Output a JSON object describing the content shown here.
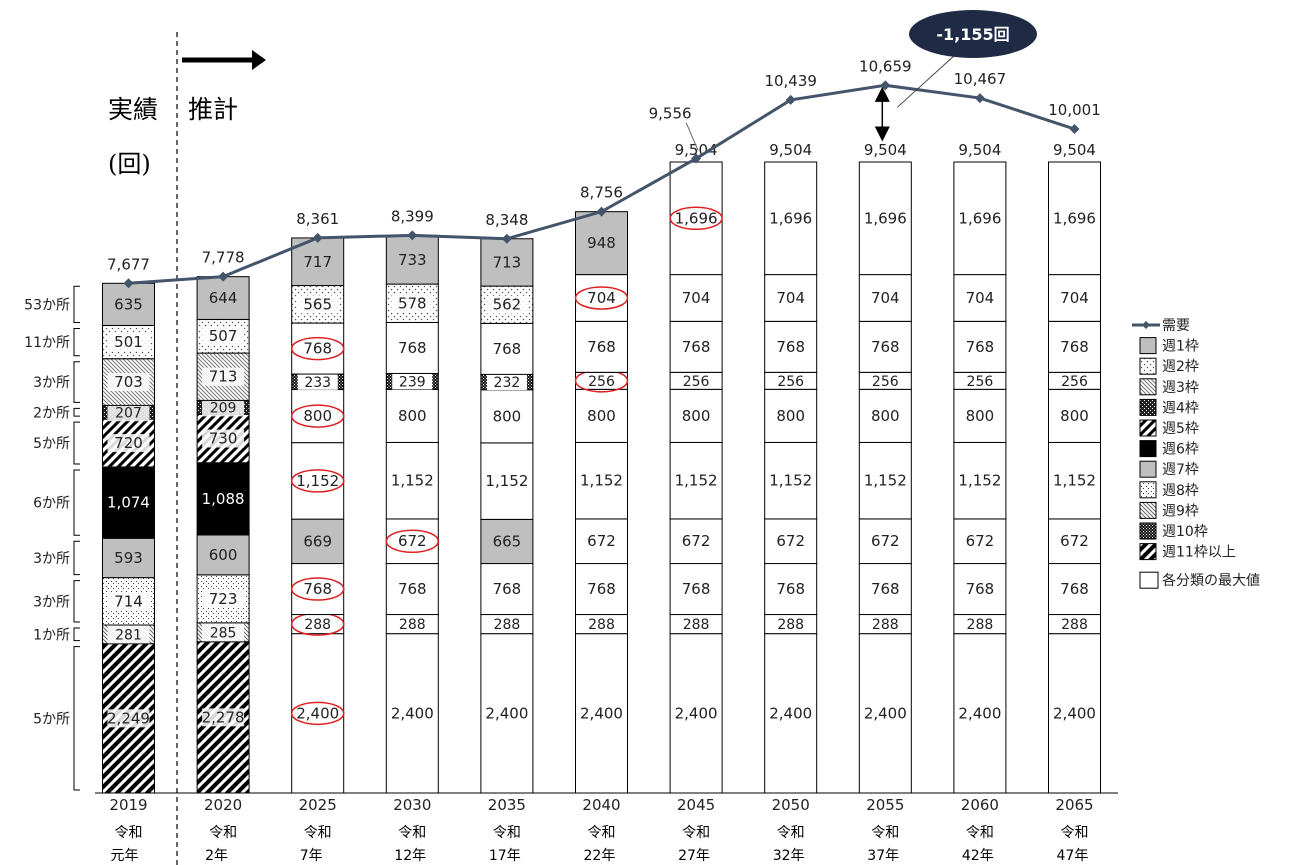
{
  "labels": {
    "actual": "実績",
    "forecast": "推計",
    "unit": "(回)",
    "callout": "-1,155回"
  },
  "legend": [
    {
      "key": "demand",
      "label": "需要"
    },
    {
      "key": "w1",
      "label": "週1枠"
    },
    {
      "key": "w2",
      "label": "週2枠"
    },
    {
      "key": "w3",
      "label": "週3枠"
    },
    {
      "key": "w4",
      "label": "週4枠"
    },
    {
      "key": "w5",
      "label": "週5枠"
    },
    {
      "key": "w6",
      "label": "週6枠"
    },
    {
      "key": "w7",
      "label": "週7枠"
    },
    {
      "key": "w8",
      "label": "週8枠"
    },
    {
      "key": "w9",
      "label": "週9枠"
    },
    {
      "key": "w10",
      "label": "週10枠"
    },
    {
      "key": "w11",
      "label": "週11枠以上"
    },
    {
      "key": "max",
      "label": "各分類の最大値"
    }
  ],
  "chart_data": {
    "type": "bar",
    "stacked": true,
    "categories": [
      {
        "year": "2019",
        "era": "令和",
        "era_year": "元年"
      },
      {
        "year": "2020",
        "era": "令和",
        "era_year": "2年"
      },
      {
        "year": "2025",
        "era": "令和",
        "era_year": "7年"
      },
      {
        "year": "2030",
        "era": "令和",
        "era_year": "12年"
      },
      {
        "year": "2035",
        "era": "令和",
        "era_year": "17年"
      },
      {
        "year": "2040",
        "era": "令和",
        "era_year": "22年"
      },
      {
        "year": "2045",
        "era": "令和",
        "era_year": "27年"
      },
      {
        "year": "2050",
        "era": "令和",
        "era_year": "32年"
      },
      {
        "year": "2055",
        "era": "令和",
        "era_year": "37年"
      },
      {
        "year": "2060",
        "era": "令和",
        "era_year": "42年"
      },
      {
        "year": "2065",
        "era": "令和",
        "era_year": "47年"
      }
    ],
    "groups": [
      {
        "label": "5か所"
      },
      {
        "label": "1か所"
      },
      {
        "label": "3か所"
      },
      {
        "label": "3か所"
      },
      {
        "label": "6か所"
      },
      {
        "label": "5か所"
      },
      {
        "label": "2か所"
      },
      {
        "label": "3か所"
      },
      {
        "label": "11か所"
      },
      {
        "label": "53か所"
      }
    ],
    "columns": [
      {
        "segments": [
          {
            "v": 2249,
            "p": "w11"
          },
          {
            "v": 281,
            "p": "w9"
          },
          {
            "v": 714,
            "p": "w8"
          },
          {
            "v": 593,
            "p": "w7"
          },
          {
            "v": 1074,
            "p": "w6"
          },
          {
            "v": 720,
            "p": "w5"
          },
          {
            "v": 207,
            "p": "w4"
          },
          {
            "v": 703,
            "p": "w3"
          },
          {
            "v": 501,
            "p": "w2"
          },
          {
            "v": 635,
            "p": "w1"
          }
        ]
      },
      {
        "segments": [
          {
            "v": 2278,
            "p": "w11"
          },
          {
            "v": 285,
            "p": "w9"
          },
          {
            "v": 723,
            "p": "w8"
          },
          {
            "v": 600,
            "p": "w7"
          },
          {
            "v": 1088,
            "p": "w6"
          },
          {
            "v": 730,
            "p": "w5"
          },
          {
            "v": 209,
            "p": "w4"
          },
          {
            "v": 713,
            "p": "w3"
          },
          {
            "v": 507,
            "p": "w2"
          },
          {
            "v": 644,
            "p": "w1"
          }
        ]
      },
      {
        "segments": [
          {
            "v": 2400,
            "p": "max",
            "c": true
          },
          {
            "v": 288,
            "p": "max",
            "c": true
          },
          {
            "v": 768,
            "p": "max",
            "c": true
          },
          {
            "v": 669,
            "p": "w1"
          },
          {
            "v": 1152,
            "p": "max",
            "c": true
          },
          {
            "v": 800,
            "p": "max",
            "c": true
          },
          {
            "v": 233,
            "p": "w10",
            "narrow": true
          },
          {
            "v": 768,
            "p": "max",
            "c": true
          },
          {
            "v": 565,
            "p": "w2"
          },
          {
            "v": 717,
            "p": "w1"
          }
        ]
      },
      {
        "segments": [
          {
            "v": 2400,
            "p": "max"
          },
          {
            "v": 288,
            "p": "max"
          },
          {
            "v": 768,
            "p": "max"
          },
          {
            "v": 672,
            "p": "max",
            "c": true
          },
          {
            "v": 1152,
            "p": "max"
          },
          {
            "v": 800,
            "p": "max"
          },
          {
            "v": 239,
            "p": "w10",
            "narrow": true
          },
          {
            "v": 768,
            "p": "max"
          },
          {
            "v": 578,
            "p": "w2"
          },
          {
            "v": 733,
            "p": "w1"
          }
        ]
      },
      {
        "segments": [
          {
            "v": 2400,
            "p": "max"
          },
          {
            "v": 288,
            "p": "max"
          },
          {
            "v": 768,
            "p": "max"
          },
          {
            "v": 665,
            "p": "w1"
          },
          {
            "v": 1152,
            "p": "max"
          },
          {
            "v": 800,
            "p": "max"
          },
          {
            "v": 232,
            "p": "w10",
            "narrow": true
          },
          {
            "v": 768,
            "p": "max"
          },
          {
            "v": 562,
            "p": "w2"
          },
          {
            "v": 713,
            "p": "w1"
          }
        ]
      },
      {
        "segments": [
          {
            "v": 2400,
            "p": "max"
          },
          {
            "v": 288,
            "p": "max"
          },
          {
            "v": 768,
            "p": "max"
          },
          {
            "v": 672,
            "p": "max"
          },
          {
            "v": 1152,
            "p": "max"
          },
          {
            "v": 800,
            "p": "max"
          },
          {
            "v": 256,
            "p": "max",
            "c": true
          },
          {
            "v": 768,
            "p": "max"
          },
          {
            "v": 704,
            "p": "max",
            "c": true
          },
          {
            "v": 948,
            "p": "w1"
          }
        ]
      },
      {
        "segments": [
          {
            "v": 2400,
            "p": "max"
          },
          {
            "v": 288,
            "p": "max"
          },
          {
            "v": 768,
            "p": "max"
          },
          {
            "v": 672,
            "p": "max"
          },
          {
            "v": 1152,
            "p": "max"
          },
          {
            "v": 800,
            "p": "max"
          },
          {
            "v": 256,
            "p": "max"
          },
          {
            "v": 768,
            "p": "max"
          },
          {
            "v": 704,
            "p": "max"
          },
          {
            "v": 1696,
            "p": "max",
            "c": true
          }
        ]
      },
      {
        "segments": [
          {
            "v": 2400,
            "p": "max"
          },
          {
            "v": 288,
            "p": "max"
          },
          {
            "v": 768,
            "p": "max"
          },
          {
            "v": 672,
            "p": "max"
          },
          {
            "v": 1152,
            "p": "max"
          },
          {
            "v": 800,
            "p": "max"
          },
          {
            "v": 256,
            "p": "max"
          },
          {
            "v": 768,
            "p": "max"
          },
          {
            "v": 704,
            "p": "max"
          },
          {
            "v": 1696,
            "p": "max"
          }
        ]
      },
      {
        "segments": [
          {
            "v": 2400,
            "p": "max"
          },
          {
            "v": 288,
            "p": "max"
          },
          {
            "v": 768,
            "p": "max"
          },
          {
            "v": 672,
            "p": "max"
          },
          {
            "v": 1152,
            "p": "max"
          },
          {
            "v": 800,
            "p": "max"
          },
          {
            "v": 256,
            "p": "max"
          },
          {
            "v": 768,
            "p": "max"
          },
          {
            "v": 704,
            "p": "max"
          },
          {
            "v": 1696,
            "p": "max"
          }
        ]
      },
      {
        "segments": [
          {
            "v": 2400,
            "p": "max"
          },
          {
            "v": 288,
            "p": "max"
          },
          {
            "v": 768,
            "p": "max"
          },
          {
            "v": 672,
            "p": "max"
          },
          {
            "v": 1152,
            "p": "max"
          },
          {
            "v": 800,
            "p": "max"
          },
          {
            "v": 256,
            "p": "max"
          },
          {
            "v": 768,
            "p": "max"
          },
          {
            "v": 704,
            "p": "max"
          },
          {
            "v": 1696,
            "p": "max"
          }
        ]
      },
      {
        "segments": [
          {
            "v": 2400,
            "p": "max"
          },
          {
            "v": 288,
            "p": "max"
          },
          {
            "v": 768,
            "p": "max"
          },
          {
            "v": 672,
            "p": "max"
          },
          {
            "v": 1152,
            "p": "max"
          },
          {
            "v": 800,
            "p": "max"
          },
          {
            "v": 256,
            "p": "max"
          },
          {
            "v": 768,
            "p": "max"
          },
          {
            "v": 704,
            "p": "max"
          },
          {
            "v": 1696,
            "p": "max"
          }
        ]
      }
    ],
    "totals": [
      "",
      "",
      "",
      "",
      "",
      "",
      "9,504",
      "9,504",
      "9,504",
      "9,504",
      "9,504"
    ],
    "demand": {
      "name": "需要",
      "values": [
        7677,
        7778,
        8361,
        8399,
        8348,
        8756,
        9556,
        10439,
        10659,
        10467,
        10001
      ]
    },
    "ylim": [
      0,
      11000
    ],
    "callout_target": 8,
    "colors": {
      "demand_line": "#44546a",
      "w1": "#bfbfbf",
      "w6": "#000000",
      "callout": "#1f2a44",
      "circle": "#e02020"
    }
  }
}
